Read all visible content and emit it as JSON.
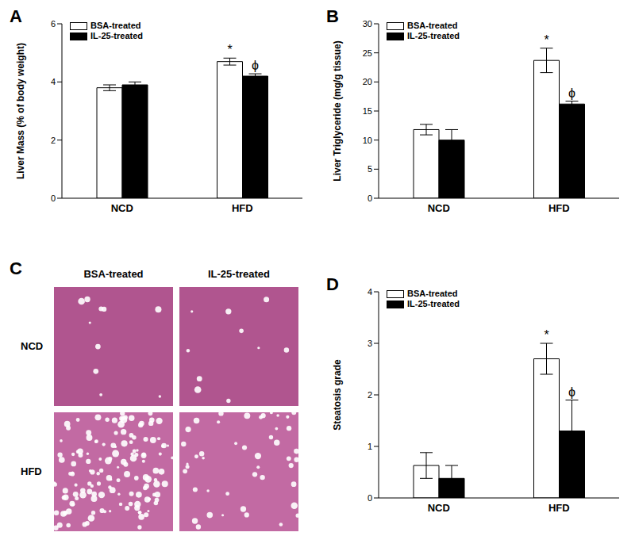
{
  "chart_data": [
    {
      "type": "bar",
      "title": "A",
      "y_label": "Liver Mass (% of body weight)",
      "categories": [
        "NCD",
        "HFD"
      ],
      "series": [
        {
          "name": "BSA-treated",
          "color": "#ffffff",
          "values": [
            3.8,
            4.7
          ],
          "errors": [
            0.1,
            0.12
          ]
        },
        {
          "name": "IL-25-treated",
          "color": "#000000",
          "values": [
            3.9,
            4.2
          ],
          "errors": [
            0.1,
            0.08
          ]
        }
      ],
      "ylim": [
        0,
        6
      ],
      "yticks": [
        0,
        2,
        4,
        6
      ],
      "grid": false,
      "legend": "upper left",
      "annotations": [
        {
          "series": "BSA-treated",
          "category": "HFD",
          "text": "*"
        },
        {
          "series": "IL-25-treated",
          "category": "HFD",
          "text": "ϕ"
        }
      ]
    },
    {
      "type": "bar",
      "title": "B",
      "y_label": "Liver Triglyceride (mg/g tissue)",
      "categories": [
        "NCD",
        "HFD"
      ],
      "series": [
        {
          "name": "BSA-treated",
          "color": "#ffffff",
          "values": [
            11.8,
            23.7
          ],
          "errors": [
            0.9,
            2.1
          ]
        },
        {
          "name": "IL-25-treated",
          "color": "#000000",
          "values": [
            10,
            16.2
          ],
          "errors": [
            1.8,
            0.5
          ]
        }
      ],
      "ylim": [
        0,
        30
      ],
      "yticks": [
        0,
        5,
        10,
        15,
        20,
        25,
        30
      ],
      "grid": false,
      "legend": "upper left",
      "annotations": [
        {
          "series": "BSA-treated",
          "category": "HFD",
          "text": "*"
        },
        {
          "series": "IL-25-treated",
          "category": "HFD",
          "text": "ϕ"
        }
      ]
    },
    {
      "type": "bar",
      "title": "D",
      "y_label": "Steatosis grade",
      "categories": [
        "NCD",
        "HFD"
      ],
      "series": [
        {
          "name": "BSA-treated",
          "color": "#ffffff",
          "values": [
            0.63,
            2.7
          ],
          "errors": [
            0.25,
            0.3
          ]
        },
        {
          "name": "IL-25-treated",
          "color": "#000000",
          "values": [
            0.38,
            1.3
          ],
          "errors": [
            0.25,
            0.6
          ]
        }
      ],
      "ylim": [
        0,
        4
      ],
      "yticks": [
        0,
        1,
        2,
        3,
        4
      ],
      "grid": false,
      "legend": "upper left",
      "annotations": [
        {
          "series": "BSA-treated",
          "category": "HFD",
          "text": "*"
        },
        {
          "series": "IL-25-treated",
          "category": "HFD",
          "text": "ϕ"
        }
      ]
    }
  ],
  "image_panel": {
    "title": "C",
    "columns": [
      "BSA-treated",
      "IL-25-treated"
    ],
    "rows": [
      "NCD",
      "HFD"
    ]
  }
}
